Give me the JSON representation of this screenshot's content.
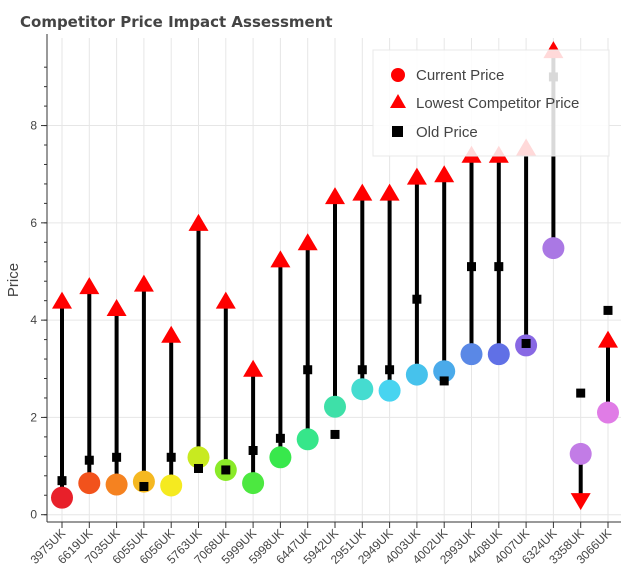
{
  "chart_data": {
    "type": "scatter",
    "title": "Competitor Price Impact Assessment",
    "xlabel": "",
    "ylabel": "Price",
    "ylim": [
      -0.15,
      9.8
    ],
    "yticks": [
      0,
      2,
      4,
      6,
      8
    ],
    "grid": true,
    "legend_position": "top-right",
    "categories": [
      "3975UK",
      "6619UK",
      "7035UK",
      "6055UK",
      "6056UK",
      "5763UK",
      "7068UK",
      "5999UK",
      "5998UK",
      "6447UK",
      "5942UK",
      "2951UK",
      "2949UK",
      "4003UK",
      "4002UK",
      "2993UK",
      "4408UK",
      "4007UK",
      "6324UK",
      "3358UK",
      "3066UK"
    ],
    "series": [
      {
        "name": "Current Price",
        "marker": "circle",
        "values": [
          0.35,
          0.65,
          0.62,
          0.68,
          0.6,
          1.18,
          0.92,
          0.65,
          1.18,
          1.55,
          2.22,
          2.58,
          2.55,
          2.88,
          2.95,
          3.3,
          3.3,
          3.48,
          5.48,
          1.25,
          2.1
        ],
        "colors": [
          "#e8202a",
          "#f2521c",
          "#f58220",
          "#f5b820",
          "#f5ea20",
          "#c8ea20",
          "#8aea28",
          "#4ce840",
          "#38e84c",
          "#36e68a",
          "#3ee0a8",
          "#45dcd0",
          "#48d4f0",
          "#46c2ec",
          "#4aaaea",
          "#5a88e6",
          "#6070e6",
          "#8868e4",
          "#aa78e4",
          "#c27ce6",
          "#e07ce6"
        ]
      },
      {
        "name": "Lowest Competitor Price",
        "marker": "triangle",
        "values": [
          4.4,
          4.7,
          4.25,
          4.75,
          3.7,
          6.0,
          4.4,
          3.0,
          5.25,
          5.6,
          6.55,
          6.62,
          6.62,
          6.95,
          7.0,
          7.4,
          7.4,
          7.55,
          9.55,
          0.28,
          3.6
        ],
        "color": "#ff0000"
      },
      {
        "name": "Old Price",
        "marker": "square",
        "values": [
          0.7,
          1.12,
          1.18,
          0.58,
          1.18,
          0.95,
          0.92,
          1.32,
          1.57,
          2.98,
          1.65,
          2.98,
          2.98,
          4.43,
          2.75,
          5.1,
          5.1,
          3.52,
          9.0,
          2.5,
          4.2
        ],
        "color": "#000000"
      }
    ]
  }
}
